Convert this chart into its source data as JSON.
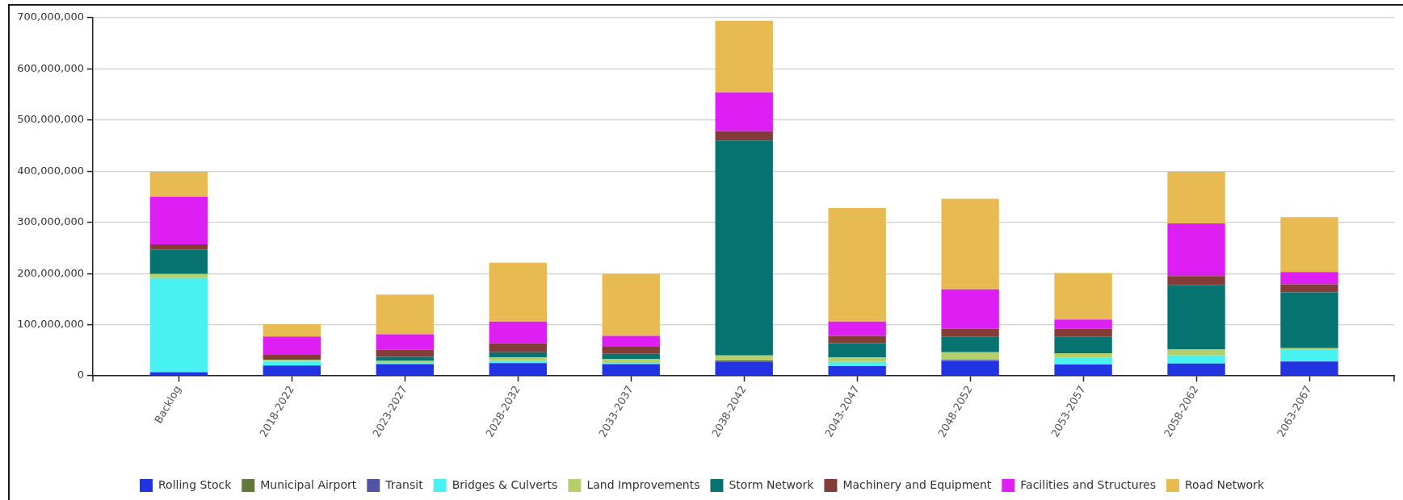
{
  "chart_data": {
    "type": "bar",
    "stacked": true,
    "grid": "y",
    "legend": "bottom",
    "categories": [
      "Backlog",
      "2018-2022",
      "2023-2027",
      "2028-2032",
      "2033-2037",
      "2038-2042",
      "2043-2047",
      "2048-2052",
      "2053-2057",
      "2058-2062",
      "2063-2067"
    ],
    "ylim": [
      0,
      700000000
    ],
    "yticks": [
      0,
      {
        "value": 100000000,
        "label": "100,000,000"
      },
      {
        "value": 200000000,
        "label": "200,000,000"
      },
      {
        "value": 300000000,
        "label": "300,000,000"
      },
      {
        "value": 400000000,
        "label": "400,000,000"
      },
      {
        "value": 500000000,
        "label": "500,000,000"
      },
      {
        "value": 600000000,
        "label": "600,000,000"
      },
      {
        "value": 700000000,
        "label": "700,000,000"
      }
    ],
    "series": [
      {
        "name": "Rolling Stock",
        "color": "#2233e2",
        "values": [
          7000000,
          20000000,
          23000000,
          25000000,
          23000000,
          27000000,
          19000000,
          29000000,
          22000000,
          24000000,
          28000000
        ]
      },
      {
        "name": "Municipal Airport",
        "color": "#637939",
        "values": [
          0,
          0,
          0,
          0,
          0,
          0,
          0,
          0,
          0,
          0,
          0
        ]
      },
      {
        "name": "Transit",
        "color": "#5254a3",
        "values": [
          0,
          0,
          0,
          0,
          0,
          3000000,
          0,
          2000000,
          0,
          0,
          0
        ]
      },
      {
        "name": "Bridges & Culverts",
        "color": "#47f2f0",
        "values": [
          184000000,
          8000000,
          2000000,
          4000000,
          2000000,
          0,
          8000000,
          0,
          14000000,
          16000000,
          23000000
        ]
      },
      {
        "name": "Land Improvements",
        "color": "#b5cf6b",
        "values": [
          8000000,
          3000000,
          4000000,
          7000000,
          8000000,
          10000000,
          9000000,
          15000000,
          8000000,
          12000000,
          3000000
        ]
      },
      {
        "name": "Storm Network",
        "color": "#077370",
        "values": [
          48000000,
          0,
          8000000,
          10000000,
          10000000,
          420000000,
          28000000,
          30000000,
          32000000,
          125000000,
          109000000
        ]
      },
      {
        "name": "Machinery and Equipment",
        "color": "#843c39",
        "values": [
          10000000,
          10000000,
          14000000,
          18000000,
          15000000,
          18000000,
          14000000,
          16000000,
          16000000,
          18000000,
          16000000
        ]
      },
      {
        "name": "Facilities and Structures",
        "color": "#dd1ff3",
        "values": [
          93000000,
          36000000,
          30000000,
          42000000,
          20000000,
          76000000,
          28000000,
          77000000,
          18000000,
          103000000,
          24000000
        ]
      },
      {
        "name": "Road Network",
        "color": "#e7ba52",
        "values": [
          49000000,
          24000000,
          78000000,
          115000000,
          121000000,
          140000000,
          222000000,
          177000000,
          91000000,
          101000000,
          107000000
        ]
      }
    ]
  }
}
